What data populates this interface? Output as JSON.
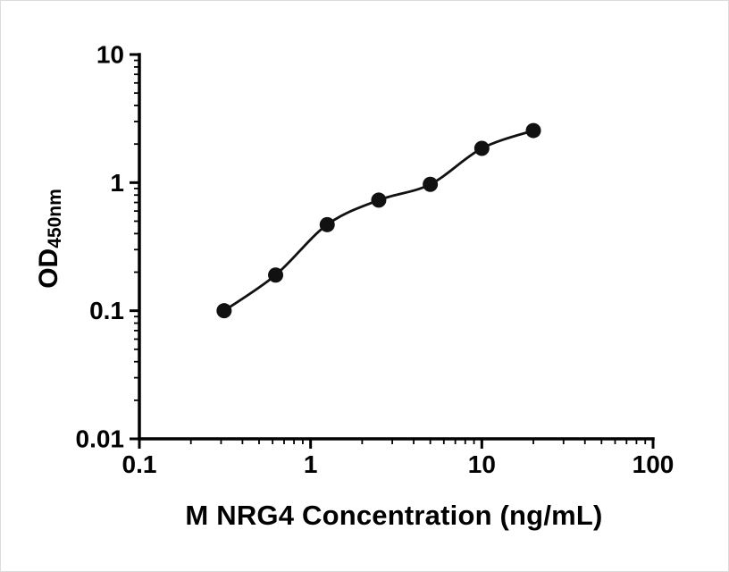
{
  "figure": {
    "background": "#ffffff",
    "border_color": "#dcdcdc"
  },
  "chart_data": {
    "type": "scatter",
    "title": "",
    "xlabel": "M NRG4 Concentration (ng/mL)",
    "ylabel_main": "OD",
    "ylabel_sub": "450nm",
    "xscale": "log",
    "yscale": "log",
    "xlim": [
      0.1,
      100
    ],
    "ylim": [
      0.01,
      10
    ],
    "x": [
      0.3125,
      0.625,
      1.25,
      2.5,
      5,
      10,
      20
    ],
    "y": [
      0.1,
      0.19,
      0.47,
      0.73,
      0.97,
      1.85,
      2.55
    ],
    "x_major_ticks": [
      0.1,
      1,
      10,
      100
    ],
    "x_major_tick_labels": [
      "0.1",
      "1",
      "10",
      "100"
    ],
    "y_major_ticks": [
      0.01,
      0.1,
      1,
      10
    ],
    "y_major_tick_labels": [
      "0.01",
      "0.1",
      "1",
      "10"
    ],
    "grid": false,
    "legend_position": "none",
    "fit_line": true,
    "marker_color": "#111111",
    "line_color": "#111111",
    "axis_color": "#000000"
  }
}
